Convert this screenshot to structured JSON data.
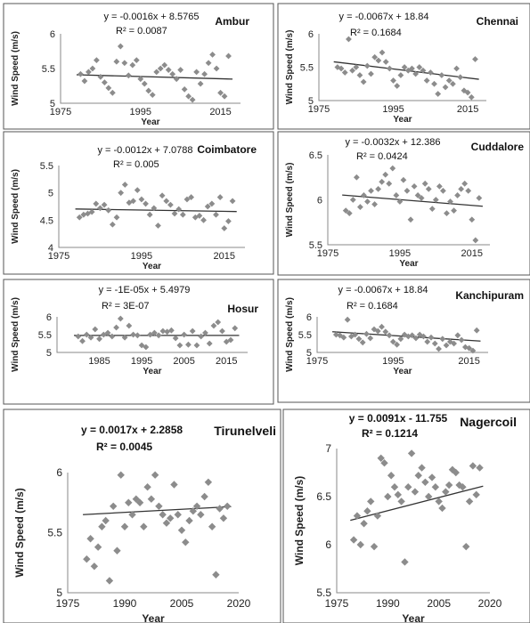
{
  "chart_data": [
    {
      "type": "scatter",
      "title": "Ambur",
      "equation": "y = -0.0016x + 8.5765",
      "r2": "R² = 0.0087",
      "xlabel": "Year",
      "ylabel": "Wind Speed (m/s)",
      "xlim": [
        1975,
        2020
      ],
      "ylim": [
        5,
        6
      ],
      "xticks": [
        "1975",
        "1995",
        "2015"
      ],
      "yticks": [
        "5",
        "5.5",
        "6"
      ],
      "trend": {
        "slope": -0.0016,
        "intercept": 8.5765
      },
      "x": [
        1980,
        1981,
        1982,
        1983,
        1984,
        1985,
        1986,
        1987,
        1988,
        1989,
        1990,
        1991,
        1992,
        1993,
        1994,
        1995,
        1996,
        1997,
        1998,
        1999,
        2000,
        2001,
        2002,
        2003,
        2004,
        2005,
        2006,
        2007,
        2008,
        2009,
        2010,
        2011,
        2012,
        2013,
        2014,
        2015,
        2016,
        2017
      ],
      "y": [
        5.42,
        5.32,
        5.45,
        5.5,
        5.62,
        5.38,
        5.3,
        5.22,
        5.15,
        5.6,
        5.82,
        5.58,
        5.4,
        5.55,
        5.62,
        5.35,
        5.28,
        5.18,
        5.12,
        5.45,
        5.5,
        5.55,
        5.48,
        5.42,
        5.35,
        5.48,
        5.2,
        5.1,
        5.05,
        5.45,
        5.28,
        5.42,
        5.58,
        5.7,
        5.5,
        5.15,
        5.1,
        5.68
      ]
    },
    {
      "type": "scatter",
      "title": "Chennai",
      "equation": "y = -0.0067x + 18.84",
      "r2": "R² = 0.1684",
      "xlabel": "Year",
      "ylabel": "Wind Speed (m/s)",
      "xlim": [
        1975,
        2020
      ],
      "ylim": [
        5,
        6
      ],
      "xticks": [
        "1975",
        "1995",
        "2015"
      ],
      "yticks": [
        "5",
        "5.5",
        "6"
      ],
      "trend": {
        "slope": -0.0067,
        "intercept": 18.84
      },
      "x": [
        1980,
        1981,
        1982,
        1983,
        1984,
        1985,
        1986,
        1987,
        1988,
        1989,
        1990,
        1991,
        1992,
        1993,
        1994,
        1995,
        1996,
        1997,
        1998,
        1999,
        2000,
        2001,
        2002,
        2003,
        2004,
        2005,
        2006,
        2007,
        2008,
        2009,
        2010,
        2011,
        2012,
        2013,
        2014,
        2015,
        2016,
        2017
      ],
      "y": [
        5.5,
        5.48,
        5.42,
        5.92,
        5.45,
        5.5,
        5.38,
        5.28,
        5.52,
        5.4,
        5.65,
        5.6,
        5.72,
        5.58,
        5.48,
        5.3,
        5.22,
        5.38,
        5.5,
        5.45,
        5.48,
        5.4,
        5.5,
        5.45,
        5.3,
        5.42,
        5.25,
        5.1,
        5.38,
        5.2,
        5.3,
        5.25,
        5.48,
        5.35,
        5.15,
        5.12,
        5.05,
        5.62
      ]
    },
    {
      "type": "scatter",
      "title": "Coimbatore",
      "equation": "y = -0.0012x + 7.0788",
      "r2": "R² = 0.005",
      "xlabel": "Year",
      "ylabel": "Wind Speed (m/s)",
      "xlim": [
        1975,
        2020
      ],
      "ylim": [
        4,
        5.5
      ],
      "xticks": [
        "1975",
        "1995",
        "2015"
      ],
      "yticks": [
        "4",
        "4.5",
        "5",
        "5.5"
      ],
      "trend": {
        "slope": -0.0012,
        "intercept": 7.0788
      },
      "x": [
        1980,
        1981,
        1982,
        1983,
        1984,
        1985,
        1986,
        1987,
        1988,
        1989,
        1990,
        1991,
        1992,
        1993,
        1994,
        1995,
        1996,
        1997,
        1998,
        1999,
        2000,
        2001,
        2002,
        2003,
        2004,
        2005,
        2006,
        2007,
        2008,
        2009,
        2010,
        2011,
        2012,
        2013,
        2014,
        2015,
        2016,
        2017
      ],
      "y": [
        4.55,
        4.6,
        4.62,
        4.65,
        4.8,
        4.72,
        4.78,
        4.68,
        4.42,
        4.55,
        5.0,
        5.15,
        4.82,
        4.85,
        5.05,
        4.88,
        4.8,
        4.6,
        4.72,
        4.4,
        4.95,
        4.85,
        4.78,
        4.62,
        4.7,
        4.6,
        4.88,
        4.92,
        4.55,
        4.58,
        4.5,
        4.75,
        4.8,
        4.6,
        4.92,
        4.35,
        4.48,
        4.85
      ]
    },
    {
      "type": "scatter",
      "title": "Cuddalore",
      "equation": "y = -0.0032x + 12.386",
      "r2": "R² = 0.0424",
      "xlabel": "Year",
      "ylabel": "Wind Speed (m/s)",
      "xlim": [
        1975,
        2020
      ],
      "ylim": [
        5.5,
        6.5
      ],
      "xticks": [
        "1975",
        "1995",
        "2015"
      ],
      "yticks": [
        "5.5",
        "6",
        "6.5"
      ],
      "trend": {
        "slope": -0.0032,
        "intercept": 12.386
      },
      "x": [
        1980,
        1981,
        1982,
        1983,
        1984,
        1985,
        1986,
        1987,
        1988,
        1989,
        1990,
        1991,
        1992,
        1993,
        1994,
        1995,
        1996,
        1997,
        1998,
        1999,
        2000,
        2001,
        2002,
        2003,
        2004,
        2005,
        2006,
        2007,
        2008,
        2009,
        2010,
        2011,
        2012,
        2013,
        2014,
        2015,
        2016,
        2017
      ],
      "y": [
        5.88,
        5.85,
        6.0,
        6.25,
        5.92,
        6.05,
        5.98,
        6.1,
        5.95,
        6.12,
        6.2,
        6.28,
        6.18,
        6.35,
        6.05,
        5.98,
        6.22,
        6.1,
        5.78,
        6.15,
        6.05,
        6.02,
        6.18,
        6.12,
        5.9,
        6.0,
        6.15,
        6.1,
        5.85,
        5.98,
        5.88,
        6.05,
        6.12,
        6.18,
        6.1,
        5.78,
        5.55,
        6.02
      ]
    },
    {
      "type": "scatter",
      "title": "Hosur",
      "equation": "y = -1E-05x + 5.4979",
      "r2": "R² = 3E-07",
      "xlabel": "Year",
      "ylabel": "Wind Speed (m/s)",
      "xlim": [
        1975,
        2020
      ],
      "ylim": [
        5,
        6
      ],
      "xticks": [
        "1985",
        "1995",
        "2005",
        "2015"
      ],
      "yticks": [
        "5",
        "5.5",
        "6"
      ],
      "trend": {
        "slope": -1e-05,
        "intercept": 5.4979
      },
      "x": [
        1980,
        1981,
        1982,
        1983,
        1984,
        1985,
        1986,
        1987,
        1988,
        1989,
        1990,
        1991,
        1992,
        1993,
        1994,
        1995,
        1996,
        1997,
        1998,
        1999,
        2000,
        2001,
        2002,
        2003,
        2004,
        2005,
        2006,
        2007,
        2008,
        2009,
        2010,
        2011,
        2012,
        2013,
        2014,
        2015,
        2016,
        2017
      ],
      "y": [
        5.45,
        5.32,
        5.5,
        5.42,
        5.65,
        5.38,
        5.5,
        5.55,
        5.45,
        5.7,
        5.95,
        5.42,
        5.75,
        5.5,
        5.48,
        5.2,
        5.15,
        5.5,
        5.55,
        5.48,
        5.6,
        5.58,
        5.62,
        5.4,
        5.2,
        5.5,
        5.22,
        5.6,
        5.2,
        5.45,
        5.55,
        5.25,
        5.75,
        5.85,
        5.6,
        5.3,
        5.35,
        5.68
      ]
    },
    {
      "type": "scatter",
      "title": "Kanchipuram",
      "equation": "y = -0.0067x + 18.84",
      "r2": "R² = 0.1684",
      "xlabel": "Year",
      "ylabel": "Wind Speed (m/s)",
      "xlim": [
        1975,
        2020
      ],
      "ylim": [
        5,
        6
      ],
      "xticks": [
        "1975",
        "1995",
        "2015"
      ],
      "yticks": [
        "5",
        "5.5",
        "6"
      ],
      "trend": {
        "slope": -0.0067,
        "intercept": 18.84
      },
      "x": [
        1980,
        1981,
        1982,
        1983,
        1984,
        1985,
        1986,
        1987,
        1988,
        1989,
        1990,
        1991,
        1992,
        1993,
        1994,
        1995,
        1996,
        1997,
        1998,
        1999,
        2000,
        2001,
        2002,
        2003,
        2004,
        2005,
        2006,
        2007,
        2008,
        2009,
        2010,
        2011,
        2012,
        2013,
        2014,
        2015,
        2016,
        2017
      ],
      "y": [
        5.5,
        5.48,
        5.42,
        5.92,
        5.45,
        5.5,
        5.38,
        5.28,
        5.52,
        5.4,
        5.65,
        5.6,
        5.72,
        5.58,
        5.48,
        5.3,
        5.22,
        5.38,
        5.5,
        5.45,
        5.48,
        5.4,
        5.5,
        5.45,
        5.3,
        5.42,
        5.25,
        5.1,
        5.38,
        5.2,
        5.3,
        5.25,
        5.48,
        5.35,
        5.15,
        5.12,
        5.05,
        5.62
      ]
    },
    {
      "type": "scatter",
      "title": "Tirunelveli",
      "equation": "y = 0.0017x + 2.2858",
      "r2": "R² = 0.0045",
      "xlabel": "Year",
      "ylabel": "Wind Speed (m/s)",
      "xlim": [
        1975,
        2020
      ],
      "ylim": [
        5,
        6
      ],
      "xticks": [
        "1975",
        "1990",
        "2005",
        "2020"
      ],
      "yticks": [
        "5",
        "5.5",
        "6"
      ],
      "trend": {
        "slope": 0.0017,
        "intercept": 2.2858
      },
      "x": [
        1980,
        1981,
        1982,
        1983,
        1984,
        1985,
        1986,
        1987,
        1988,
        1989,
        1990,
        1991,
        1992,
        1993,
        1994,
        1995,
        1996,
        1997,
        1998,
        1999,
        2000,
        2001,
        2002,
        2003,
        2004,
        2005,
        2006,
        2007,
        2008,
        2009,
        2010,
        2011,
        2012,
        2013,
        2014,
        2015,
        2016,
        2017
      ],
      "y": [
        5.28,
        5.45,
        5.22,
        5.38,
        5.55,
        5.6,
        5.1,
        5.72,
        5.35,
        5.98,
        5.55,
        5.75,
        5.65,
        5.78,
        5.75,
        5.55,
        5.88,
        5.78,
        5.98,
        5.72,
        5.65,
        5.58,
        5.62,
        5.9,
        5.65,
        5.52,
        5.42,
        5.6,
        5.68,
        5.72,
        5.65,
        5.8,
        5.92,
        5.55,
        5.15,
        5.7,
        5.62,
        5.72
      ]
    },
    {
      "type": "scatter",
      "title": "Nagercoil",
      "equation": "y = 0.0091x - 11.755",
      "r2": "R² = 0.1214",
      "xlabel": "Year",
      "ylabel": "Wind Speed (m/s)",
      "xlim": [
        1975,
        2020
      ],
      "ylim": [
        5.5,
        7
      ],
      "xticks": [
        "1975",
        "1990",
        "2005",
        "2020"
      ],
      "yticks": [
        "5.5",
        "6",
        "6.5",
        "7"
      ],
      "trend": {
        "slope": 0.0091,
        "intercept": -11.755
      },
      "x": [
        1980,
        1981,
        1982,
        1983,
        1984,
        1985,
        1986,
        1987,
        1988,
        1989,
        1990,
        1991,
        1992,
        1993,
        1994,
        1995,
        1996,
        1997,
        1998,
        1999,
        2000,
        2001,
        2002,
        2003,
        2004,
        2005,
        2006,
        2007,
        2008,
        2009,
        2010,
        2011,
        2012,
        2013,
        2014,
        2015,
        2016,
        2017
      ],
      "y": [
        6.05,
        6.3,
        6.0,
        6.22,
        6.35,
        6.45,
        5.98,
        6.3,
        6.9,
        6.85,
        6.5,
        6.72,
        6.6,
        6.52,
        6.45,
        5.82,
        6.6,
        6.95,
        6.55,
        6.72,
        6.8,
        6.65,
        6.5,
        6.7,
        6.6,
        6.45,
        6.38,
        6.55,
        6.62,
        6.78,
        6.75,
        6.62,
        6.6,
        5.98,
        6.45,
        6.82,
        6.52,
        6.8
      ]
    }
  ]
}
